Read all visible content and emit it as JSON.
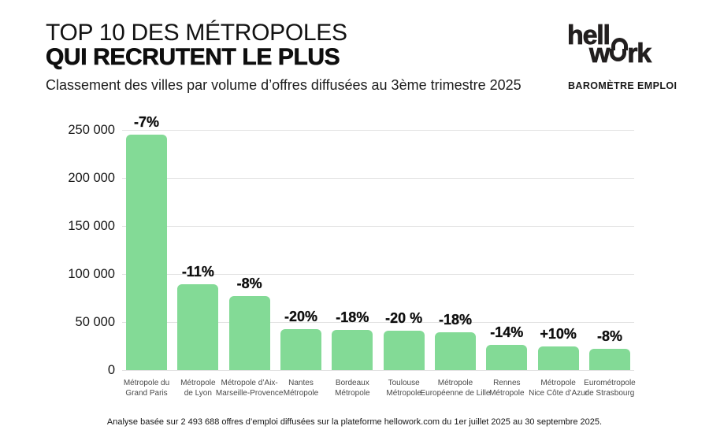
{
  "header": {
    "title_line1": "TOP 10 DES MÉTROPOLES",
    "title_line2": "QUI RECRUTENT LE PLUS",
    "subtitle": "Classement des villes par volume d’offres diffusées au 3ème trimestre 2025"
  },
  "brand": {
    "logo_part1": "hell",
    "logo_part2": "w",
    "logo_part3": "rk",
    "tagline": "BAROMÈTRE EMPLOI"
  },
  "chart_data": {
    "type": "bar",
    "title": "Top 10 des métropoles qui recrutent le plus — volume d’offres diffusées au 3ème trimestre 2025",
    "categories": [
      "Métropole du\nGrand Paris",
      "Métropole\nde Lyon",
      "Métropole d’Aix-\nMarseille-Provence",
      "Nantes\nMétropole",
      "Bordeaux\nMétropole",
      "Toulouse\nMétropole",
      "Métropole\nEuropéenne de Lille",
      "Rennes\nMétropole",
      "Métropole\nNice Côte d’Azur",
      "Eurométropole\nde Strasbourg"
    ],
    "values": [
      245000,
      89000,
      77000,
      43000,
      42000,
      41000,
      39000,
      26000,
      25000,
      22000
    ],
    "bar_labels": [
      "-7%",
      "-11%",
      "-8%",
      "-20%",
      "-18%",
      "-20 %",
      "-18%",
      "-14%",
      "+10%",
      "-8%"
    ],
    "xlabel": "",
    "ylabel": "",
    "ylim": [
      0,
      250000
    ],
    "yticks": [
      {
        "value": 0,
        "label": "0"
      },
      {
        "value": 50000,
        "label": "50 000"
      },
      {
        "value": 100000,
        "label": "100 000"
      },
      {
        "value": 150000,
        "label": "150 000"
      },
      {
        "value": 200000,
        "label": "200 000"
      },
      {
        "value": 250000,
        "label": "250 000"
      }
    ],
    "grid": true,
    "legend": false,
    "bar_color": "#83DA96"
  },
  "footer": {
    "note": "Analyse basée sur 2 493 688 offres d’emploi diffusées sur la plateforme hellowork.com du 1er juillet 2025 au 30 septembre 2025."
  }
}
